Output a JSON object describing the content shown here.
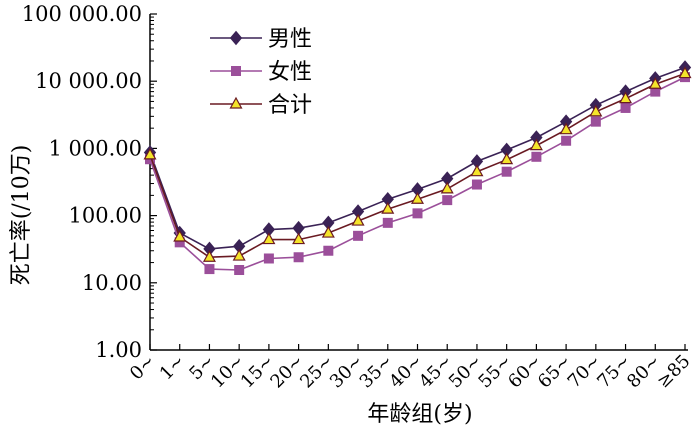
{
  "chart_data": {
    "type": "line",
    "title": "",
    "xlabel": "年龄组(岁)",
    "ylabel": "死亡率(/10万)",
    "y_scale": "log",
    "ylim": [
      1,
      100000
    ],
    "y_ticks": [
      1,
      10,
      100,
      1000,
      10000,
      100000
    ],
    "y_tick_labels": [
      "1.00",
      "10.00",
      "100.00",
      "1 000.00",
      "10 000.00",
      "100 000.00"
    ],
    "categories": [
      "0~",
      "1~",
      "5~",
      "10~",
      "15~",
      "20~",
      "25~",
      "30~",
      "35~",
      "40~",
      "45~",
      "50~",
      "55~",
      "60~",
      "65~",
      "70~",
      "75~",
      "80~",
      "≥85"
    ],
    "series": [
      {
        "name": "男性",
        "color": "#3a2255",
        "marker": "diamond",
        "values": [
          870,
          55,
          32,
          35,
          62,
          65,
          78,
          115,
          175,
          245,
          355,
          640,
          950,
          1450,
          2500,
          4400,
          7000,
          11000,
          16000
        ]
      },
      {
        "name": "女性",
        "color": "#9b4f9a",
        "marker": "square",
        "values": [
          690,
          40,
          16,
          15.5,
          23,
          24,
          30,
          50,
          78,
          108,
          170,
          290,
          450,
          750,
          1300,
          2500,
          4000,
          7000,
          11500
        ]
      },
      {
        "name": "合计",
        "color": "#6a1a22",
        "marker": "triangle",
        "marker_fill": "#f4e42a",
        "values": [
          800,
          48,
          24,
          25,
          44,
          44,
          55,
          83,
          125,
          175,
          250,
          450,
          680,
          1100,
          1900,
          3500,
          5500,
          9000,
          13000
        ]
      }
    ],
    "legend_position": "top-left"
  }
}
